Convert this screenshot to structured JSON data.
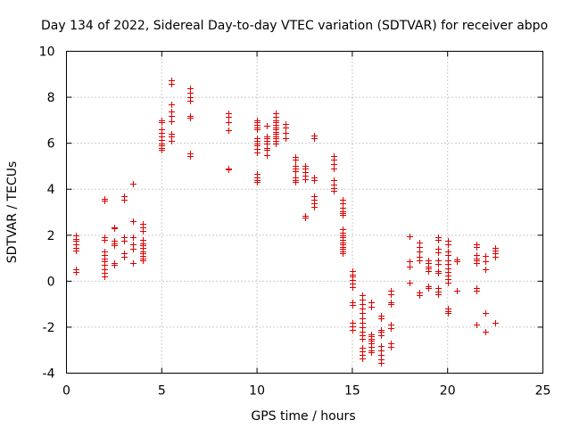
{
  "chart_data": {
    "type": "scatter",
    "title": "Day 134 of 2022, Sidereal Day-to-day VTEC variation (SDTVAR) for receiver abpo",
    "xlabel": "GPS time / hours",
    "ylabel": "SDTVAR / TECUs",
    "xlim": [
      0,
      25
    ],
    "ylim": [
      -4,
      10
    ],
    "xticks": [
      0,
      5,
      10,
      15,
      20,
      25
    ],
    "yticks": [
      -4,
      -2,
      0,
      2,
      4,
      6,
      8,
      10
    ],
    "xtick_labels": [
      "0",
      "5",
      "10",
      "15",
      "20",
      "25"
    ],
    "ytick_labels": [
      "-4",
      "-2",
      "0",
      "2",
      "4",
      "6",
      "8",
      "10"
    ],
    "grid": true,
    "marker": "+",
    "color": "#dd0000",
    "series": [
      {
        "name": "SDTVAR",
        "points": [
          [
            0.5,
            2.0
          ],
          [
            0.5,
            1.85
          ],
          [
            0.5,
            1.75
          ],
          [
            0.5,
            1.6
          ],
          [
            0.5,
            1.45
          ],
          [
            0.5,
            1.35
          ],
          [
            0.5,
            0.5
          ],
          [
            0.5,
            0.42
          ],
          [
            2.0,
            3.6
          ],
          [
            2.0,
            3.5
          ],
          [
            2.0,
            1.9
          ],
          [
            2.0,
            1.8
          ],
          [
            2.0,
            1.3
          ],
          [
            2.0,
            1.15
          ],
          [
            2.0,
            1.0
          ],
          [
            2.0,
            0.85
          ],
          [
            2.0,
            0.7
          ],
          [
            2.0,
            0.5
          ],
          [
            2.0,
            0.35
          ],
          [
            2.0,
            0.2
          ],
          [
            2.5,
            2.35
          ],
          [
            2.5,
            2.3
          ],
          [
            2.5,
            1.75
          ],
          [
            2.5,
            1.65
          ],
          [
            2.5,
            1.55
          ],
          [
            2.5,
            0.8
          ],
          [
            2.5,
            0.7
          ],
          [
            3.0,
            3.7
          ],
          [
            3.0,
            3.55
          ],
          [
            3.0,
            1.9
          ],
          [
            3.0,
            1.75
          ],
          [
            3.0,
            1.2
          ],
          [
            3.0,
            1.05
          ],
          [
            3.5,
            4.25
          ],
          [
            3.5,
            2.6
          ],
          [
            3.5,
            1.9
          ],
          [
            3.5,
            1.6
          ],
          [
            3.5,
            1.4
          ],
          [
            3.5,
            0.8
          ],
          [
            4.0,
            2.5
          ],
          [
            4.0,
            2.35
          ],
          [
            4.0,
            2.2
          ],
          [
            4.0,
            1.8
          ],
          [
            4.0,
            1.65
          ],
          [
            4.0,
            1.55
          ],
          [
            4.0,
            1.45
          ],
          [
            4.0,
            1.3
          ],
          [
            4.0,
            1.2
          ],
          [
            4.0,
            1.1
          ],
          [
            4.0,
            1.0
          ],
          [
            4.0,
            0.9
          ],
          [
            5.0,
            7.0
          ],
          [
            5.0,
            6.9
          ],
          [
            5.0,
            6.6
          ],
          [
            5.0,
            6.45
          ],
          [
            5.0,
            6.3
          ],
          [
            5.0,
            6.15
          ],
          [
            5.0,
            6.0
          ],
          [
            5.0,
            5.9
          ],
          [
            5.0,
            5.8
          ],
          [
            5.0,
            5.7
          ],
          [
            5.5,
            8.75
          ],
          [
            5.5,
            8.6
          ],
          [
            5.5,
            7.7
          ],
          [
            5.5,
            7.4
          ],
          [
            5.5,
            7.2
          ],
          [
            5.5,
            6.95
          ],
          [
            5.5,
            6.4
          ],
          [
            5.5,
            6.3
          ],
          [
            5.5,
            6.1
          ],
          [
            6.5,
            8.4
          ],
          [
            6.5,
            8.2
          ],
          [
            6.5,
            8.0
          ],
          [
            6.5,
            7.85
          ],
          [
            6.5,
            7.2
          ],
          [
            6.5,
            7.1
          ],
          [
            6.5,
            5.55
          ],
          [
            6.5,
            5.45
          ],
          [
            8.5,
            7.3
          ],
          [
            8.5,
            7.15
          ],
          [
            8.5,
            6.9
          ],
          [
            8.5,
            6.55
          ],
          [
            8.5,
            4.9
          ],
          [
            8.5,
            4.85
          ],
          [
            10.0,
            7.0
          ],
          [
            10.0,
            6.9
          ],
          [
            10.0,
            6.8
          ],
          [
            10.0,
            6.7
          ],
          [
            10.0,
            6.6
          ],
          [
            10.0,
            6.2
          ],
          [
            10.0,
            6.1
          ],
          [
            10.0,
            6.0
          ],
          [
            10.0,
            5.9
          ],
          [
            10.0,
            5.75
          ],
          [
            10.0,
            5.6
          ],
          [
            10.0,
            4.65
          ],
          [
            10.0,
            4.5
          ],
          [
            10.0,
            4.4
          ],
          [
            10.0,
            4.3
          ],
          [
            10.5,
            6.75
          ],
          [
            10.5,
            6.3
          ],
          [
            10.5,
            6.2
          ],
          [
            10.5,
            6.1
          ],
          [
            10.5,
            6.0
          ],
          [
            10.5,
            5.8
          ],
          [
            10.5,
            5.7
          ],
          [
            10.5,
            5.5
          ],
          [
            11.0,
            7.3
          ],
          [
            11.0,
            7.15
          ],
          [
            11.0,
            7.0
          ],
          [
            11.0,
            6.9
          ],
          [
            11.0,
            6.8
          ],
          [
            11.0,
            6.7
          ],
          [
            11.0,
            6.6
          ],
          [
            11.0,
            6.5
          ],
          [
            11.0,
            6.4
          ],
          [
            11.0,
            6.3
          ],
          [
            11.0,
            6.2
          ],
          [
            11.0,
            6.1
          ],
          [
            11.0,
            6.0
          ],
          [
            11.5,
            6.85
          ],
          [
            11.5,
            6.7
          ],
          [
            11.5,
            6.45
          ],
          [
            11.5,
            6.2
          ],
          [
            12.0,
            5.4
          ],
          [
            12.0,
            5.3
          ],
          [
            12.0,
            5.0
          ],
          [
            12.0,
            4.9
          ],
          [
            12.0,
            4.8
          ],
          [
            12.0,
            4.5
          ],
          [
            12.0,
            4.4
          ],
          [
            12.0,
            4.3
          ],
          [
            12.5,
            5.0
          ],
          [
            12.5,
            4.9
          ],
          [
            12.5,
            4.75
          ],
          [
            12.5,
            4.6
          ],
          [
            12.5,
            4.45
          ],
          [
            12.5,
            2.85
          ],
          [
            12.5,
            2.75
          ],
          [
            13.0,
            6.35
          ],
          [
            13.0,
            6.2
          ],
          [
            13.0,
            4.5
          ],
          [
            13.0,
            4.4
          ],
          [
            13.0,
            3.7
          ],
          [
            13.0,
            3.55
          ],
          [
            13.0,
            3.4
          ],
          [
            13.0,
            3.25
          ],
          [
            14.0,
            5.45
          ],
          [
            14.0,
            5.3
          ],
          [
            14.0,
            5.1
          ],
          [
            14.0,
            4.9
          ],
          [
            14.0,
            4.4
          ],
          [
            14.0,
            4.2
          ],
          [
            14.0,
            4.05
          ],
          [
            14.0,
            3.95
          ],
          [
            14.5,
            3.55
          ],
          [
            14.5,
            3.4
          ],
          [
            14.5,
            3.2
          ],
          [
            14.5,
            3.05
          ],
          [
            14.5,
            2.95
          ],
          [
            14.5,
            2.9
          ],
          [
            14.5,
            2.25
          ],
          [
            14.5,
            2.1
          ],
          [
            14.5,
            2.0
          ],
          [
            14.5,
            1.9
          ],
          [
            14.5,
            1.8
          ],
          [
            14.5,
            1.7
          ],
          [
            14.5,
            1.6
          ],
          [
            14.5,
            1.5
          ],
          [
            14.5,
            1.4
          ],
          [
            14.5,
            1.3
          ],
          [
            14.5,
            1.2
          ],
          [
            15.0,
            0.45
          ],
          [
            15.0,
            0.3
          ],
          [
            15.0,
            0.2
          ],
          [
            15.0,
            0.05
          ],
          [
            15.0,
            -0.1
          ],
          [
            15.0,
            -0.25
          ],
          [
            15.0,
            -0.9
          ],
          [
            15.0,
            -1.05
          ],
          [
            15.0,
            -1.8
          ],
          [
            15.0,
            -1.95
          ],
          [
            15.0,
            -2.1
          ],
          [
            15.5,
            -0.6
          ],
          [
            15.5,
            -0.8
          ],
          [
            15.5,
            -1.0
          ],
          [
            15.5,
            -1.2
          ],
          [
            15.5,
            -1.4
          ],
          [
            15.5,
            -1.6
          ],
          [
            15.5,
            -1.8
          ],
          [
            15.5,
            -2.0
          ],
          [
            15.5,
            -2.2
          ],
          [
            15.5,
            -2.35
          ],
          [
            15.5,
            -2.5
          ],
          [
            15.5,
            -2.9
          ],
          [
            15.5,
            -3.05
          ],
          [
            15.5,
            -3.2
          ],
          [
            15.5,
            -3.35
          ],
          [
            16.0,
            -0.9
          ],
          [
            16.0,
            -1.1
          ],
          [
            16.0,
            -2.3
          ],
          [
            16.0,
            -2.4
          ],
          [
            16.0,
            -2.5
          ],
          [
            16.0,
            -2.6
          ],
          [
            16.0,
            -2.7
          ],
          [
            16.0,
            -2.85
          ],
          [
            16.0,
            -3.0
          ],
          [
            16.0,
            -3.1
          ],
          [
            16.5,
            -1.5
          ],
          [
            16.5,
            -1.6
          ],
          [
            16.5,
            -2.1
          ],
          [
            16.5,
            -2.2
          ],
          [
            16.5,
            -2.35
          ],
          [
            16.5,
            -2.8
          ],
          [
            16.5,
            -3.0
          ],
          [
            16.5,
            -3.2
          ],
          [
            16.5,
            -3.4
          ],
          [
            16.5,
            -3.55
          ],
          [
            17.0,
            -0.4
          ],
          [
            17.0,
            -0.55
          ],
          [
            17.0,
            -0.9
          ],
          [
            17.0,
            -1.0
          ],
          [
            17.0,
            -1.9
          ],
          [
            17.0,
            -2.05
          ],
          [
            17.0,
            -2.7
          ],
          [
            17.0,
            -2.85
          ],
          [
            18.0,
            1.95
          ],
          [
            18.0,
            0.85
          ],
          [
            18.0,
            0.65
          ],
          [
            18.0,
            -0.05
          ],
          [
            18.5,
            1.7
          ],
          [
            18.5,
            1.5
          ],
          [
            18.5,
            1.3
          ],
          [
            18.5,
            1.05
          ],
          [
            18.5,
            0.9
          ],
          [
            18.5,
            -0.5
          ],
          [
            18.5,
            -0.6
          ],
          [
            19.0,
            0.9
          ],
          [
            19.0,
            0.8
          ],
          [
            19.0,
            0.65
          ],
          [
            19.0,
            0.55
          ],
          [
            19.0,
            0.45
          ],
          [
            19.0,
            -0.2
          ],
          [
            19.0,
            -0.3
          ],
          [
            19.5,
            1.9
          ],
          [
            19.5,
            1.8
          ],
          [
            19.5,
            1.4
          ],
          [
            19.5,
            1.25
          ],
          [
            19.5,
            0.9
          ],
          [
            19.5,
            0.75
          ],
          [
            19.5,
            0.45
          ],
          [
            19.5,
            0.35
          ],
          [
            19.5,
            -0.3
          ],
          [
            19.5,
            -0.45
          ],
          [
            19.5,
            -0.55
          ],
          [
            20.0,
            1.75
          ],
          [
            20.0,
            1.6
          ],
          [
            20.0,
            1.3
          ],
          [
            20.0,
            1.15
          ],
          [
            20.0,
            0.9
          ],
          [
            20.0,
            0.75
          ],
          [
            20.0,
            0.55
          ],
          [
            20.0,
            0.4
          ],
          [
            20.0,
            0.25
          ],
          [
            20.0,
            0.1
          ],
          [
            20.0,
            -0.05
          ],
          [
            20.0,
            -1.2
          ],
          [
            20.0,
            -1.3
          ],
          [
            20.0,
            -1.4
          ],
          [
            20.5,
            0.95
          ],
          [
            20.5,
            0.85
          ],
          [
            20.5,
            -0.4
          ],
          [
            21.5,
            1.6
          ],
          [
            21.5,
            1.5
          ],
          [
            21.5,
            1.15
          ],
          [
            21.5,
            1.0
          ],
          [
            21.5,
            0.9
          ],
          [
            21.5,
            0.8
          ],
          [
            21.5,
            -0.3
          ],
          [
            21.5,
            -0.4
          ],
          [
            21.5,
            -1.9
          ],
          [
            22.0,
            1.1
          ],
          [
            22.0,
            0.85
          ],
          [
            22.0,
            0.5
          ],
          [
            22.0,
            -1.4
          ],
          [
            22.0,
            -2.2
          ],
          [
            22.5,
            1.45
          ],
          [
            22.5,
            1.35
          ],
          [
            22.5,
            1.2
          ],
          [
            22.5,
            1.05
          ],
          [
            22.5,
            -1.8
          ]
        ]
      }
    ]
  }
}
